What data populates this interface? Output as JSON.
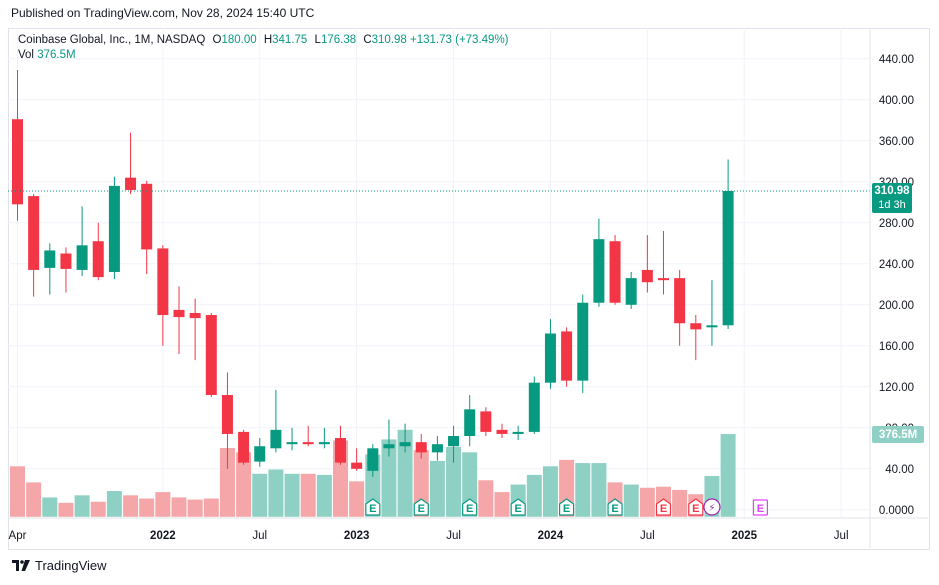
{
  "published": "Published on TradingView.com, Nov 28, 2024 15:40 UTC",
  "brand": "TradingView",
  "legend": {
    "symbol": "Coinbase Global, Inc., 1M, NASDAQ",
    "o_label": "O",
    "o_value": "180.00",
    "h_label": "H",
    "h_value": "341.75",
    "l_label": "L",
    "l_value": "176.38",
    "c_label": "C",
    "c_value": "310.98",
    "change": "+131.73 (+73.49%)",
    "vol_label": "Vol",
    "vol_value": "376.5M"
  },
  "colors": {
    "up": "#089981",
    "down": "#f23645",
    "volUp": "#8fd0c5",
    "volDown": "#f5a6a8",
    "earnings_past": "#089981",
    "earnings_recent": "#f23645",
    "earnings_future": "#e040fb"
  },
  "chart_data": {
    "type": "candlestick",
    "title": "Coinbase Global, Inc., 1M, NASDAQ",
    "ylim": [
      -8,
      470
    ],
    "y_ticks": [
      "440.00",
      "400.00",
      "360.00",
      "320.00",
      "280.00",
      "240.00",
      "200.00",
      "160.00",
      "120.00",
      "80.00",
      "40.00",
      "0.0000"
    ],
    "y_tick_values": [
      440,
      400,
      360,
      320,
      280,
      240,
      200,
      160,
      120,
      80,
      40,
      0
    ],
    "x_labels": [
      "Apr",
      "2022",
      "Jul",
      "2023",
      "Jul",
      "2024",
      "Jul",
      "2025",
      "Jul"
    ],
    "x_label_index": [
      0,
      9,
      15,
      21,
      27,
      33,
      39,
      45,
      51
    ],
    "last_price_label": "310.98",
    "countdown_label": "1d 3h",
    "volume_label": "376.5M",
    "volume_scale_max_M": 376.5,
    "candles": [
      {
        "o": 381,
        "h": 429,
        "l": 282,
        "c": 298,
        "vol": 0.47
      },
      {
        "o": 306,
        "h": 308,
        "l": 208,
        "c": 234,
        "vol": 0.32
      },
      {
        "o": 236,
        "h": 260,
        "l": 210,
        "c": 253,
        "vol": 0.18
      },
      {
        "o": 250,
        "h": 256,
        "l": 212,
        "c": 235,
        "vol": 0.13
      },
      {
        "o": 234,
        "h": 296,
        "l": 228,
        "c": 258,
        "vol": 0.2
      },
      {
        "o": 262,
        "h": 280,
        "l": 224,
        "c": 227,
        "vol": 0.14
      },
      {
        "o": 232,
        "h": 325,
        "l": 225,
        "c": 316,
        "vol": 0.24
      },
      {
        "o": 324,
        "h": 368,
        "l": 308,
        "c": 312,
        "vol": 0.2
      },
      {
        "o": 318,
        "h": 321,
        "l": 230,
        "c": 254,
        "vol": 0.17
      },
      {
        "o": 255,
        "h": 258,
        "l": 160,
        "c": 190,
        "vol": 0.23
      },
      {
        "o": 195,
        "h": 218,
        "l": 152,
        "c": 188,
        "vol": 0.18
      },
      {
        "o": 192,
        "h": 206,
        "l": 146,
        "c": 187,
        "vol": 0.16
      },
      {
        "o": 190,
        "h": 192,
        "l": 110,
        "c": 112,
        "vol": 0.17
      },
      {
        "o": 112,
        "h": 134,
        "l": 40,
        "c": 74,
        "vol": 0.64
      },
      {
        "o": 76,
        "h": 78,
        "l": 44,
        "c": 46,
        "vol": 0.6
      },
      {
        "o": 47,
        "h": 70,
        "l": 42,
        "c": 62,
        "vol": 0.4
      },
      {
        "o": 60,
        "h": 117,
        "l": 56,
        "c": 78,
        "vol": 0.44
      },
      {
        "o": 64,
        "h": 80,
        "l": 58,
        "c": 66,
        "vol": 0.4
      },
      {
        "o": 66,
        "h": 82,
        "l": 62,
        "c": 64,
        "vol": 0.4
      },
      {
        "o": 64,
        "h": 80,
        "l": 60,
        "c": 66,
        "vol": 0.39
      },
      {
        "o": 70,
        "h": 82,
        "l": 44,
        "c": 46,
        "vol": 0.71
      },
      {
        "o": 46,
        "h": 60,
        "l": 38,
        "c": 40,
        "vol": 0.33
      },
      {
        "o": 38,
        "h": 64,
        "l": 32,
        "c": 60,
        "vol": 0.58
      },
      {
        "o": 60,
        "h": 88,
        "l": 52,
        "c": 64,
        "vol": 0.72
      },
      {
        "o": 62,
        "h": 84,
        "l": 56,
        "c": 66,
        "vol": 0.81
      },
      {
        "o": 66,
        "h": 74,
        "l": 50,
        "c": 56,
        "vol": 0.62
      },
      {
        "o": 56,
        "h": 72,
        "l": 48,
        "c": 64,
        "vol": 0.52
      },
      {
        "o": 62,
        "h": 82,
        "l": 46,
        "c": 72,
        "vol": 0.65
      },
      {
        "o": 72,
        "h": 112,
        "l": 62,
        "c": 98,
        "vol": 0.6
      },
      {
        "o": 96,
        "h": 100,
        "l": 72,
        "c": 76,
        "vol": 0.34
      },
      {
        "o": 78,
        "h": 84,
        "l": 70,
        "c": 74,
        "vol": 0.23
      },
      {
        "o": 74,
        "h": 82,
        "l": 68,
        "c": 76,
        "vol": 0.3
      },
      {
        "o": 76,
        "h": 130,
        "l": 74,
        "c": 124,
        "vol": 0.39
      },
      {
        "o": 124,
        "h": 186,
        "l": 118,
        "c": 172,
        "vol": 0.47
      },
      {
        "o": 174,
        "h": 178,
        "l": 120,
        "c": 126,
        "vol": 0.53
      },
      {
        "o": 126,
        "h": 210,
        "l": 114,
        "c": 202,
        "vol": 0.5
      },
      {
        "o": 202,
        "h": 284,
        "l": 198,
        "c": 264,
        "vol": 0.5
      },
      {
        "o": 262,
        "h": 268,
        "l": 200,
        "c": 202,
        "vol": 0.32
      },
      {
        "o": 200,
        "h": 232,
        "l": 196,
        "c": 226,
        "vol": 0.3
      },
      {
        "o": 234,
        "h": 268,
        "l": 212,
        "c": 222,
        "vol": 0.27
      },
      {
        "o": 226,
        "h": 272,
        "l": 210,
        "c": 224,
        "vol": 0.28
      },
      {
        "o": 226,
        "h": 234,
        "l": 160,
        "c": 182,
        "vol": 0.25
      },
      {
        "o": 182,
        "h": 190,
        "l": 146,
        "c": 176,
        "vol": 0.21
      },
      {
        "o": 178,
        "h": 224,
        "l": 160,
        "c": 180,
        "vol": 0.38
      },
      {
        "o": 180,
        "h": 341.75,
        "l": 176.38,
        "c": 310.98,
        "vol": 0.77
      }
    ],
    "earnings": [
      {
        "index": 22,
        "label": "E",
        "kind": "past"
      },
      {
        "index": 25,
        "label": "E",
        "kind": "past"
      },
      {
        "index": 28,
        "label": "E",
        "kind": "past"
      },
      {
        "index": 31,
        "label": "E",
        "kind": "past"
      },
      {
        "index": 34,
        "label": "E",
        "kind": "past"
      },
      {
        "index": 37,
        "label": "E",
        "kind": "past"
      },
      {
        "index": 40,
        "label": "E",
        "kind": "recent"
      },
      {
        "index": 42,
        "label": "E",
        "kind": "recent"
      },
      {
        "index": 46,
        "label": "E",
        "kind": "future"
      }
    ],
    "dividend_marker": {
      "index": 43,
      "symbol": "⚡"
    }
  }
}
